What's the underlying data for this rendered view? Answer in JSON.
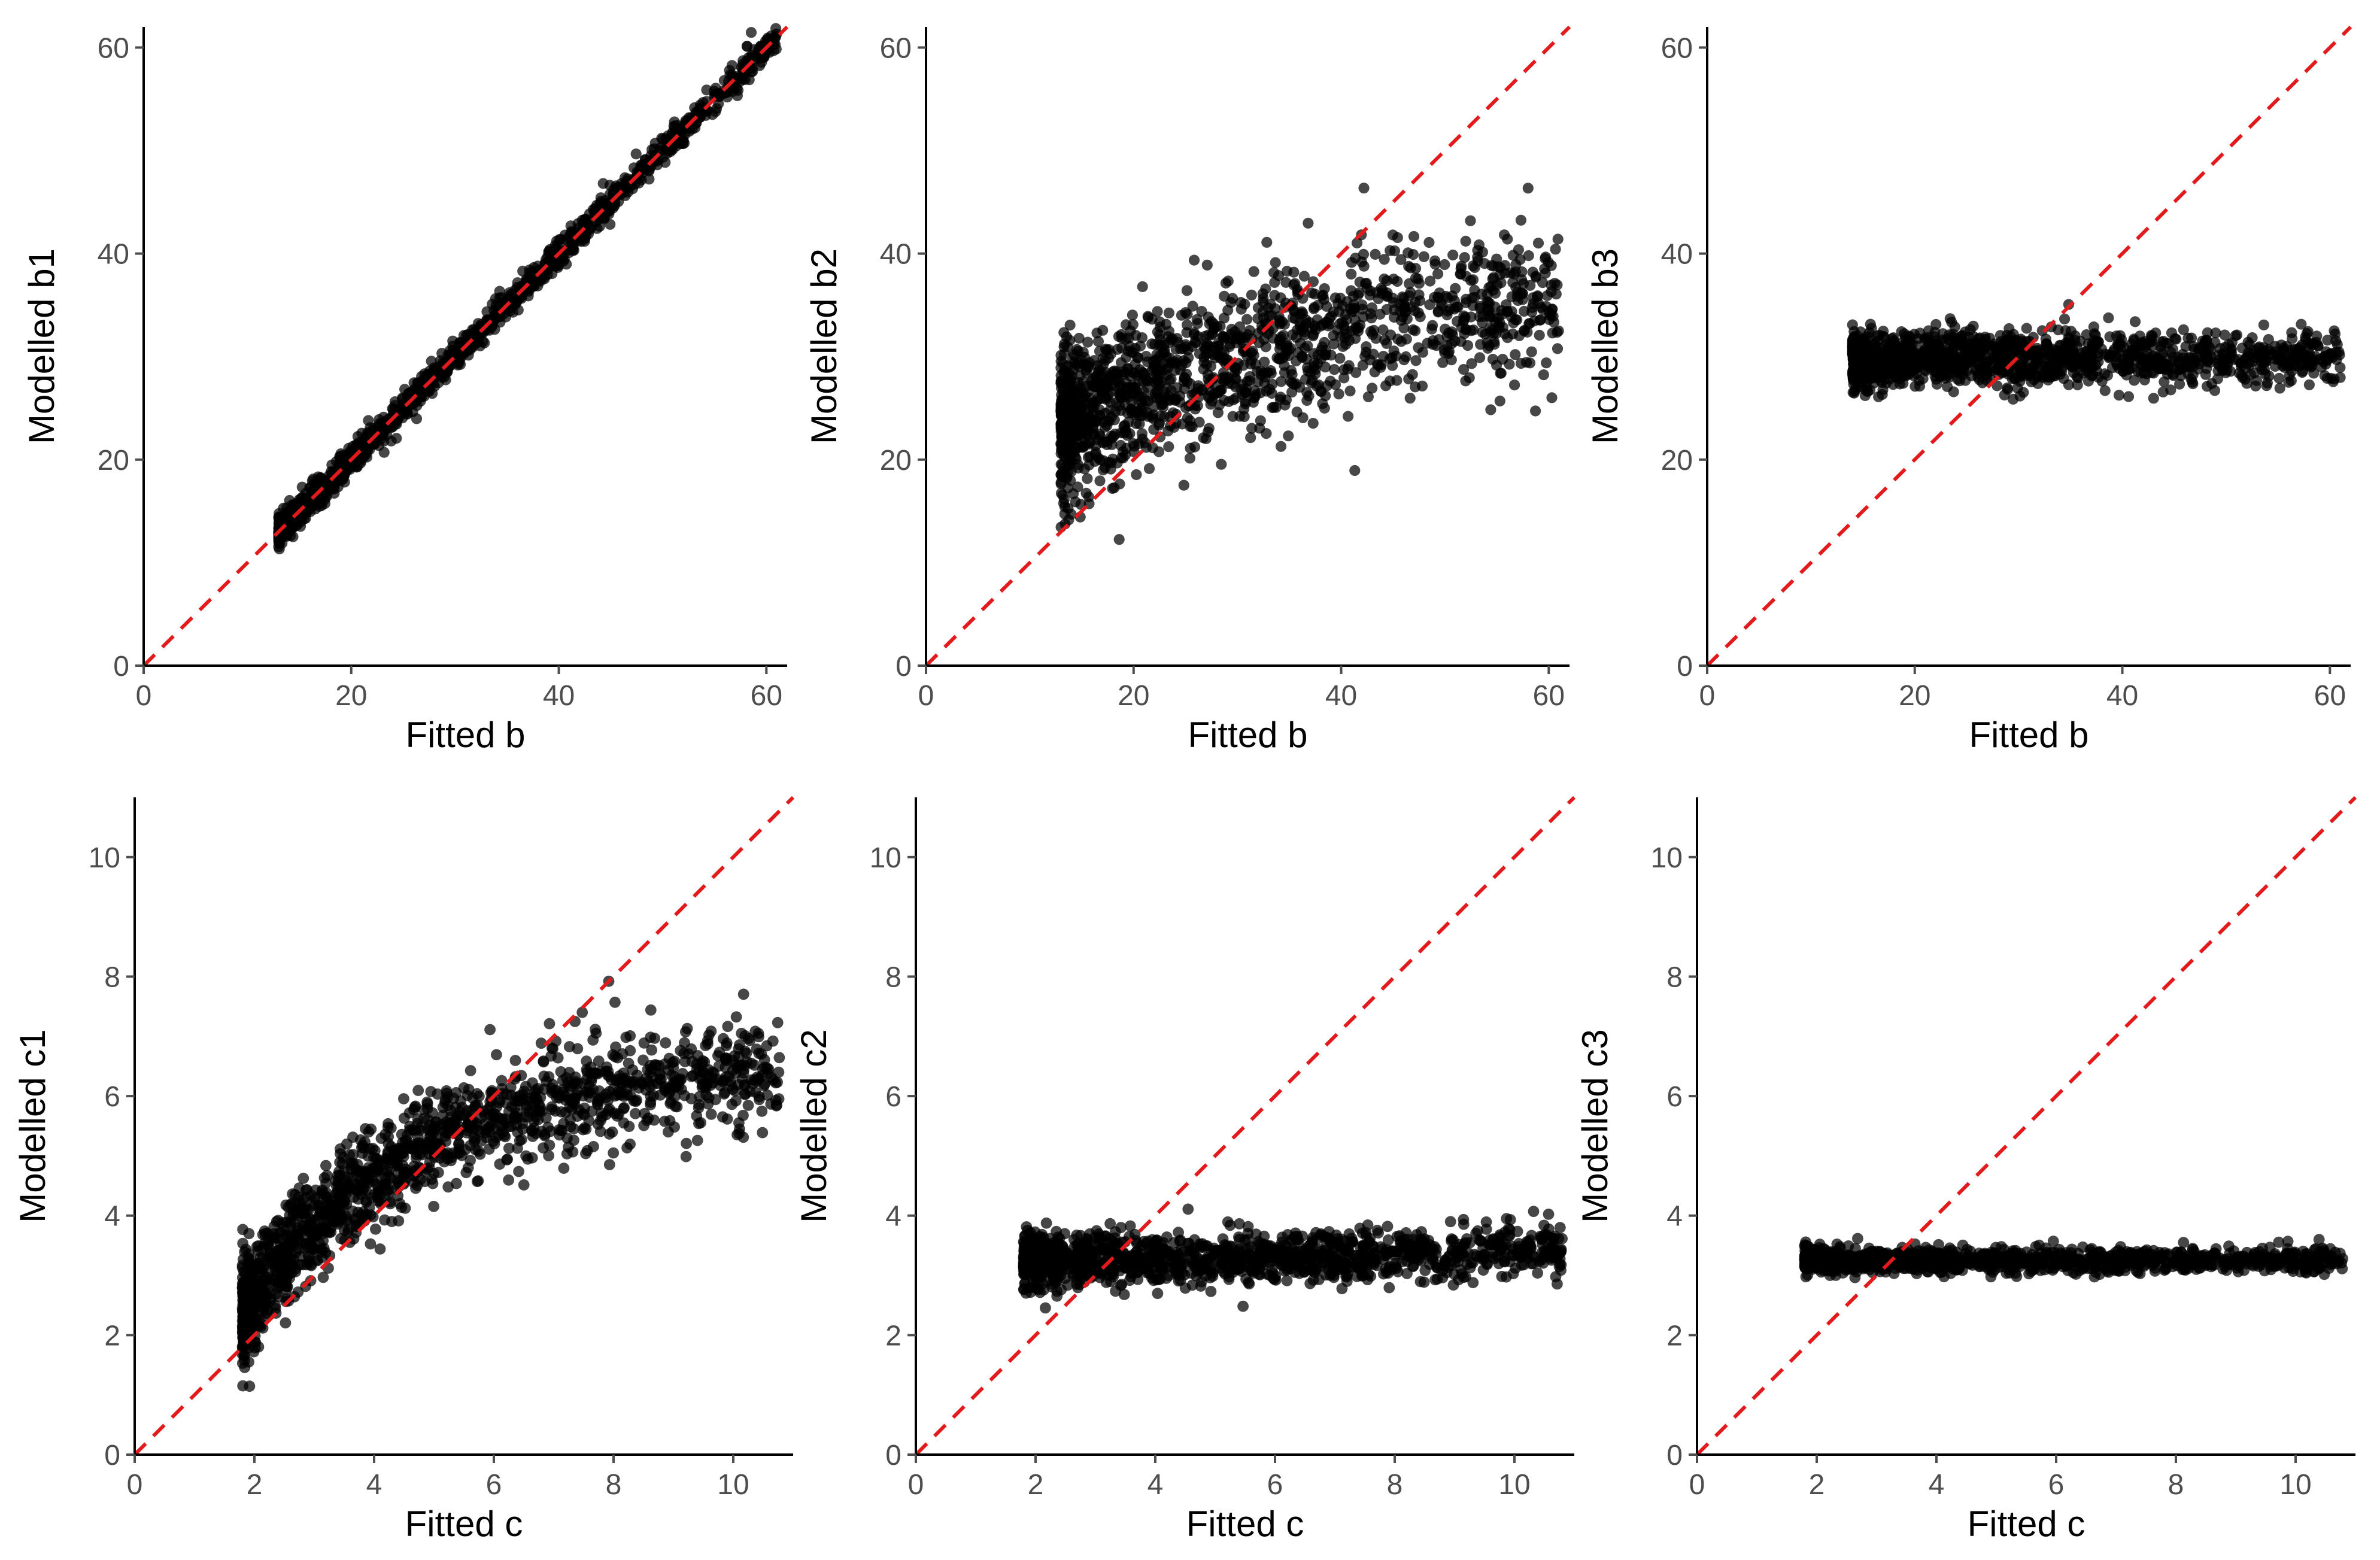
{
  "colors": {
    "point": "#000000",
    "identity_line": "#e31a1c",
    "axis": "#000000",
    "tick_label": "#4d4d4d"
  },
  "chart_data": [
    {
      "type": "scatter",
      "panel": "top-left",
      "xlabel": "Fitted b",
      "ylabel": "Modelled b1",
      "xlim": [
        0,
        62
      ],
      "ylim": [
        0,
        62
      ],
      "xticks": [
        0,
        20,
        40,
        60
      ],
      "yticks": [
        0,
        20,
        40,
        60
      ],
      "identity_line": true,
      "cloud": {
        "xmin": 13,
        "xmax": 61,
        "pattern": "linear",
        "slope": 1.0,
        "intercept": 0.0,
        "spread": 0.7,
        "n": 1400
      }
    },
    {
      "type": "scatter",
      "panel": "top-middle",
      "xlabel": "Fitted b",
      "ylabel": "Modelled b2",
      "xlim": [
        0,
        62
      ],
      "ylim": [
        0,
        62
      ],
      "xticks": [
        0,
        20,
        40,
        60
      ],
      "yticks": [
        0,
        20,
        40,
        60
      ],
      "identity_line": true,
      "cloud": {
        "xmin": 13,
        "xmax": 61,
        "pattern": "sublinear",
        "y_at_xmin": 22,
        "y_at_xmax": 36,
        "spread": 3.8,
        "n": 1500
      }
    },
    {
      "type": "scatter",
      "panel": "top-right",
      "xlabel": "Fitted b",
      "ylabel": "Modelled b3",
      "xlim": [
        0,
        62
      ],
      "ylim": [
        0,
        62
      ],
      "xticks": [
        0,
        20,
        40,
        60
      ],
      "yticks": [
        0,
        20,
        40,
        60
      ],
      "identity_line": true,
      "cloud": {
        "xmin": 14,
        "xmax": 61,
        "pattern": "linear",
        "slope": 0.0,
        "intercept": 29.8,
        "spread": 1.3,
        "n": 1400
      }
    },
    {
      "type": "scatter",
      "panel": "bottom-left",
      "xlabel": "Fitted c",
      "ylabel": "Modelled c1",
      "xlim": [
        0,
        11
      ],
      "ylim": [
        0,
        11
      ],
      "xticks": [
        0,
        2,
        4,
        6,
        8,
        10
      ],
      "yticks": [
        0,
        2,
        4,
        6,
        8,
        10
      ],
      "identity_line": true,
      "cloud": {
        "xmin": 1.8,
        "xmax": 10.8,
        "pattern": "saturating",
        "y_at_xmin": 2.4,
        "y_at_xmax": 6.4,
        "spread": 0.45,
        "n": 1500
      }
    },
    {
      "type": "scatter",
      "panel": "bottom-middle",
      "xlabel": "Fitted c",
      "ylabel": "Modelled c2",
      "xlim": [
        0,
        11
      ],
      "ylim": [
        0,
        11
      ],
      "xticks": [
        0,
        2,
        4,
        6,
        8,
        10
      ],
      "yticks": [
        0,
        2,
        4,
        6,
        8,
        10
      ],
      "identity_line": true,
      "cloud": {
        "xmin": 1.8,
        "xmax": 10.8,
        "pattern": "linear",
        "slope": 0.02,
        "intercept": 3.2,
        "spread": 0.22,
        "n": 1400
      }
    },
    {
      "type": "scatter",
      "panel": "bottom-right",
      "xlabel": "Fitted c",
      "ylabel": "Modelled c3",
      "xlim": [
        0,
        11
      ],
      "ylim": [
        0,
        11
      ],
      "xticks": [
        0,
        2,
        4,
        6,
        8,
        10
      ],
      "yticks": [
        0,
        2,
        4,
        6,
        8,
        10
      ],
      "identity_line": true,
      "cloud": {
        "xmin": 1.8,
        "xmax": 10.8,
        "pattern": "linear",
        "slope": 0.0,
        "intercept": 3.25,
        "spread": 0.1,
        "n": 1300
      }
    }
  ]
}
